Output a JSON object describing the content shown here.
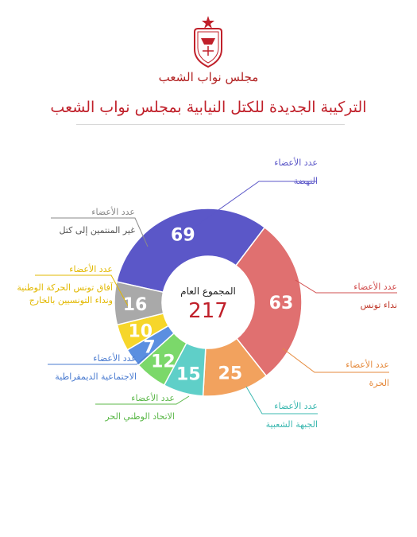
{
  "header": {
    "org_name": "مجلس نواب الشعب",
    "title": "التركيبة الجديدة للكتل النيابية بمجلس نواب الشعب"
  },
  "center": {
    "label": "المجموع العام",
    "total": "217"
  },
  "chart_data": {
    "type": "pie",
    "title": "التركيبة الجديدة للكتل النيابية بمجلس نواب الشعب",
    "total": 217,
    "categories": [
      "النهضة",
      "نداء تونس",
      "الحرة",
      "الجبهة الشعبية",
      "الاتحاد الوطني الحر",
      "الاجتماعية الديمقراطية",
      "آفاق تونس الحركة الوطنية ونداء التونسيين بالخارج",
      "غير المنتمين إلى كتل"
    ],
    "values": [
      69,
      63,
      25,
      15,
      12,
      7,
      10,
      16
    ],
    "colors": [
      "#5b57c8",
      "#e07070",
      "#f2a25e",
      "#5fcfc8",
      "#7bd86a",
      "#5b8fe0",
      "#f6d62a",
      "#a9a9a9"
    ],
    "label_caption": "عدد الأعضاء"
  },
  "labels": [
    {
      "caption": "عدد الأعضاء",
      "name": "النهضة",
      "cap_color": "#5b57c8",
      "name_color": "#5b57c8"
    },
    {
      "caption": "عدد الأعضاء",
      "name": "نداء تونس",
      "cap_color": "#d24f4f",
      "name_color": "#c0392b"
    },
    {
      "caption": "عدد الأعضاء",
      "name": "الحرة",
      "cap_color": "#e58a3c",
      "name_color": "#e58a3c"
    },
    {
      "caption": "عدد الأعضاء",
      "name": "الجبهة الشعبية",
      "cap_color": "#3bb8b0",
      "name_color": "#3bb8b0"
    },
    {
      "caption": "عدد الأعضاء",
      "name": "الاتحاد الوطني الحر",
      "cap_color": "#5cb84a",
      "name_color": "#5cb84a"
    },
    {
      "caption": "عدد الأعضاء",
      "name": "الاجتماعية الديمقراطية",
      "cap_color": "#4a7bd0",
      "name_color": "#4a7bd0"
    },
    {
      "caption": "عدد الأعضاء",
      "name": "آفاق تونس الحركة الوطنية",
      "name2": "ونداء التونسيين بالخارج",
      "cap_color": "#e2b800",
      "name_color": "#e2b800"
    },
    {
      "caption": "عدد الأعضاء",
      "name": "غير المنتمين إلى كتل",
      "cap_color": "#8a8a8a",
      "name_color": "#555555"
    }
  ]
}
